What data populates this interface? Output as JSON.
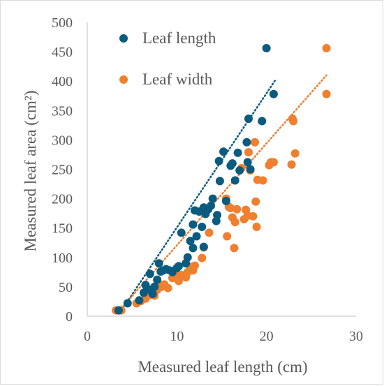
{
  "chart_data": {
    "type": "scatter",
    "xlabel": "Measured leaf length (cm)",
    "ylabel": "Measured leaf area (cm²)",
    "xlim": [
      0,
      30
    ],
    "ylim": [
      0,
      500
    ],
    "xticks": [
      "0",
      "10",
      "20",
      "30"
    ],
    "yticks": [
      "0",
      "50",
      "100",
      "150",
      "200",
      "250",
      "300",
      "350",
      "400",
      "450",
      "500"
    ],
    "grid": false,
    "legend_position": "top-left",
    "series": [
      {
        "name": "Leaf length",
        "color": "#0b5b7f",
        "trendline": {
          "style": "dotted",
          "x": [
            4,
            21
          ],
          "y": [
            14,
            402
          ]
        },
        "points": [
          [
            3.5,
            10
          ],
          [
            4.5,
            22
          ],
          [
            5.8,
            27
          ],
          [
            6.3,
            40
          ],
          [
            6.5,
            53
          ],
          [
            7.0,
            45
          ],
          [
            7.0,
            72
          ],
          [
            7.3,
            38
          ],
          [
            7.5,
            50
          ],
          [
            7.8,
            62
          ],
          [
            8.0,
            90
          ],
          [
            8.2,
            76
          ],
          [
            8.5,
            78
          ],
          [
            8.8,
            80
          ],
          [
            9.2,
            78
          ],
          [
            9.5,
            75
          ],
          [
            10.0,
            82
          ],
          [
            10.2,
            85
          ],
          [
            10.5,
            142
          ],
          [
            11.0,
            90
          ],
          [
            11.2,
            100
          ],
          [
            11.5,
            128
          ],
          [
            11.8,
            156
          ],
          [
            11.8,
            116
          ],
          [
            12.0,
            180
          ],
          [
            12.2,
            136
          ],
          [
            12.5,
            178
          ],
          [
            12.8,
            152
          ],
          [
            13.0,
            185
          ],
          [
            13.0,
            118
          ],
          [
            13.2,
            174
          ],
          [
            13.5,
            182
          ],
          [
            13.8,
            188
          ],
          [
            14.0,
            200
          ],
          [
            14.4,
            162
          ],
          [
            14.5,
            172
          ],
          [
            14.7,
            264
          ],
          [
            14.8,
            230
          ],
          [
            15.2,
            280
          ],
          [
            15.5,
            196
          ],
          [
            16.0,
            256
          ],
          [
            16.2,
            260
          ],
          [
            16.5,
            231
          ],
          [
            16.8,
            278
          ],
          [
            17.0,
            248
          ],
          [
            17.8,
            296
          ],
          [
            17.9,
            262
          ],
          [
            18.0,
            336
          ],
          [
            18.2,
            250
          ],
          [
            19.5,
            332
          ],
          [
            20.0,
            456
          ],
          [
            20.8,
            378
          ]
        ]
      },
      {
        "name": "Leaf width",
        "color": "#f07f2e",
        "trendline": {
          "style": "dotted",
          "x": [
            3.5,
            26.7
          ],
          "y": [
            8,
            410
          ]
        },
        "points": [
          [
            3.2,
            10
          ],
          [
            3.8,
            10
          ],
          [
            5.5,
            22
          ],
          [
            6.0,
            26
          ],
          [
            6.5,
            30
          ],
          [
            7.0,
            36
          ],
          [
            7.5,
            35
          ],
          [
            7.8,
            45
          ],
          [
            8.0,
            55
          ],
          [
            8.3,
            50
          ],
          [
            8.6,
            54
          ],
          [
            9.0,
            48
          ],
          [
            9.5,
            65
          ],
          [
            10.0,
            72
          ],
          [
            10.2,
            60
          ],
          [
            10.5,
            70
          ],
          [
            11.0,
            66
          ],
          [
            11.2,
            75
          ],
          [
            11.5,
            84
          ],
          [
            11.8,
            78
          ],
          [
            12.0,
            86
          ],
          [
            12.8,
            99
          ],
          [
            13.0,
            117
          ],
          [
            13.6,
            142
          ],
          [
            15.5,
            200
          ],
          [
            15.6,
            136
          ],
          [
            15.8,
            186
          ],
          [
            16.0,
            184
          ],
          [
            16.2,
            168
          ],
          [
            16.5,
            160
          ],
          [
            16.4,
            116
          ],
          [
            16.7,
            182
          ],
          [
            17.2,
            252
          ],
          [
            17.5,
            165
          ],
          [
            17.7,
            181
          ],
          [
            17.9,
            171
          ],
          [
            18.0,
            279
          ],
          [
            18.2,
            248
          ],
          [
            18.5,
            170
          ],
          [
            18.7,
            296
          ],
          [
            18.8,
            195
          ],
          [
            18.9,
            152
          ],
          [
            19.0,
            232
          ],
          [
            19.6,
            231
          ],
          [
            20.3,
            257
          ],
          [
            20.5,
            262
          ],
          [
            20.8,
            262
          ],
          [
            22.8,
            258
          ],
          [
            22.9,
            336
          ],
          [
            23.0,
            332
          ],
          [
            23.2,
            277
          ],
          [
            26.7,
            456
          ],
          [
            26.7,
            378
          ]
        ]
      }
    ]
  }
}
